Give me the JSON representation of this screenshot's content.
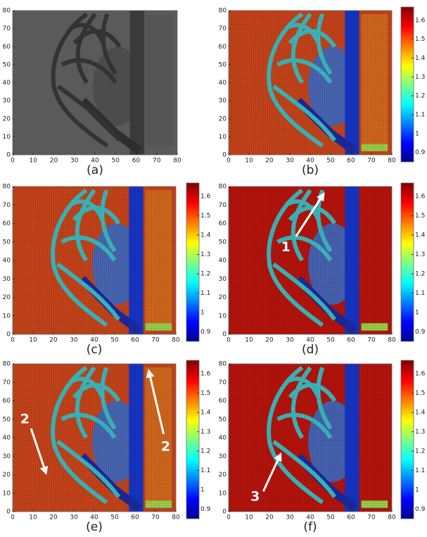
{
  "chart_data": [
    {
      "type": "heatmap",
      "label": "(a)",
      "colormap": "gray",
      "xlim": [
        0,
        80
      ],
      "ylim": [
        0,
        80
      ],
      "xticks": [
        0,
        10,
        20,
        30,
        40,
        50,
        60,
        70,
        80
      ],
      "yticks": [
        0,
        10,
        20,
        30,
        40,
        50,
        60,
        70,
        80
      ]
    },
    {
      "type": "heatmap",
      "label": "(b)",
      "colormap": "jet",
      "xlim": [
        0,
        80
      ],
      "ylim": [
        0,
        80
      ],
      "xticks": [
        0,
        10,
        20,
        30,
        40,
        50,
        60,
        70,
        80
      ],
      "yticks": [
        0,
        10,
        20,
        30,
        40,
        50,
        60,
        70,
        80
      ],
      "clim": [
        0.85,
        1.67
      ],
      "cticks": [
        0.9,
        1,
        1.1,
        1.2,
        1.3,
        1.4,
        1.5,
        1.6
      ]
    },
    {
      "type": "heatmap",
      "label": "(c)",
      "colormap": "jet",
      "xlim": [
        0,
        80
      ],
      "ylim": [
        0,
        80
      ],
      "xticks": [
        0,
        10,
        20,
        30,
        40,
        50,
        60,
        70,
        80
      ],
      "yticks": [
        0,
        10,
        20,
        30,
        40,
        50,
        60,
        70,
        80
      ],
      "clim": [
        0.85,
        1.67
      ],
      "cticks": [
        0.9,
        1,
        1.1,
        1.2,
        1.3,
        1.4,
        1.5,
        1.6
      ]
    },
    {
      "type": "heatmap",
      "label": "(d)",
      "colormap": "jet",
      "xlim": [
        0,
        80
      ],
      "ylim": [
        0,
        80
      ],
      "xticks": [
        0,
        10,
        20,
        30,
        40,
        50,
        60,
        70,
        80
      ],
      "yticks": [
        0,
        10,
        20,
        30,
        40,
        50,
        60,
        70,
        80
      ],
      "clim": [
        0.85,
        1.67
      ],
      "cticks": [
        0.9,
        1,
        1.1,
        1.2,
        1.3,
        1.4,
        1.5,
        1.6
      ],
      "annotations": [
        "1"
      ]
    },
    {
      "type": "heatmap",
      "label": "(e)",
      "colormap": "jet",
      "xlim": [
        0,
        80
      ],
      "ylim": [
        0,
        80
      ],
      "xticks": [
        0,
        10,
        20,
        30,
        40,
        50,
        60,
        70,
        80
      ],
      "yticks": [
        0,
        10,
        20,
        30,
        40,
        50,
        60,
        70,
        80
      ],
      "clim": [
        0.85,
        1.67
      ],
      "cticks": [
        0.9,
        1,
        1.1,
        1.2,
        1.3,
        1.4,
        1.5,
        1.6
      ],
      "annotations": [
        "2",
        "2"
      ]
    },
    {
      "type": "heatmap",
      "label": "(f)",
      "colormap": "jet",
      "xlim": [
        0,
        80
      ],
      "ylim": [
        0,
        80
      ],
      "xticks": [
        0,
        10,
        20,
        30,
        40,
        50,
        60,
        70,
        80
      ],
      "yticks": [
        0,
        10,
        20,
        30,
        40,
        50,
        60,
        70,
        80
      ],
      "clim": [
        0.85,
        1.67
      ],
      "cticks": [
        0.9,
        1,
        1.1,
        1.2,
        1.3,
        1.4,
        1.5,
        1.6
      ],
      "annotations": [
        "3"
      ]
    }
  ]
}
